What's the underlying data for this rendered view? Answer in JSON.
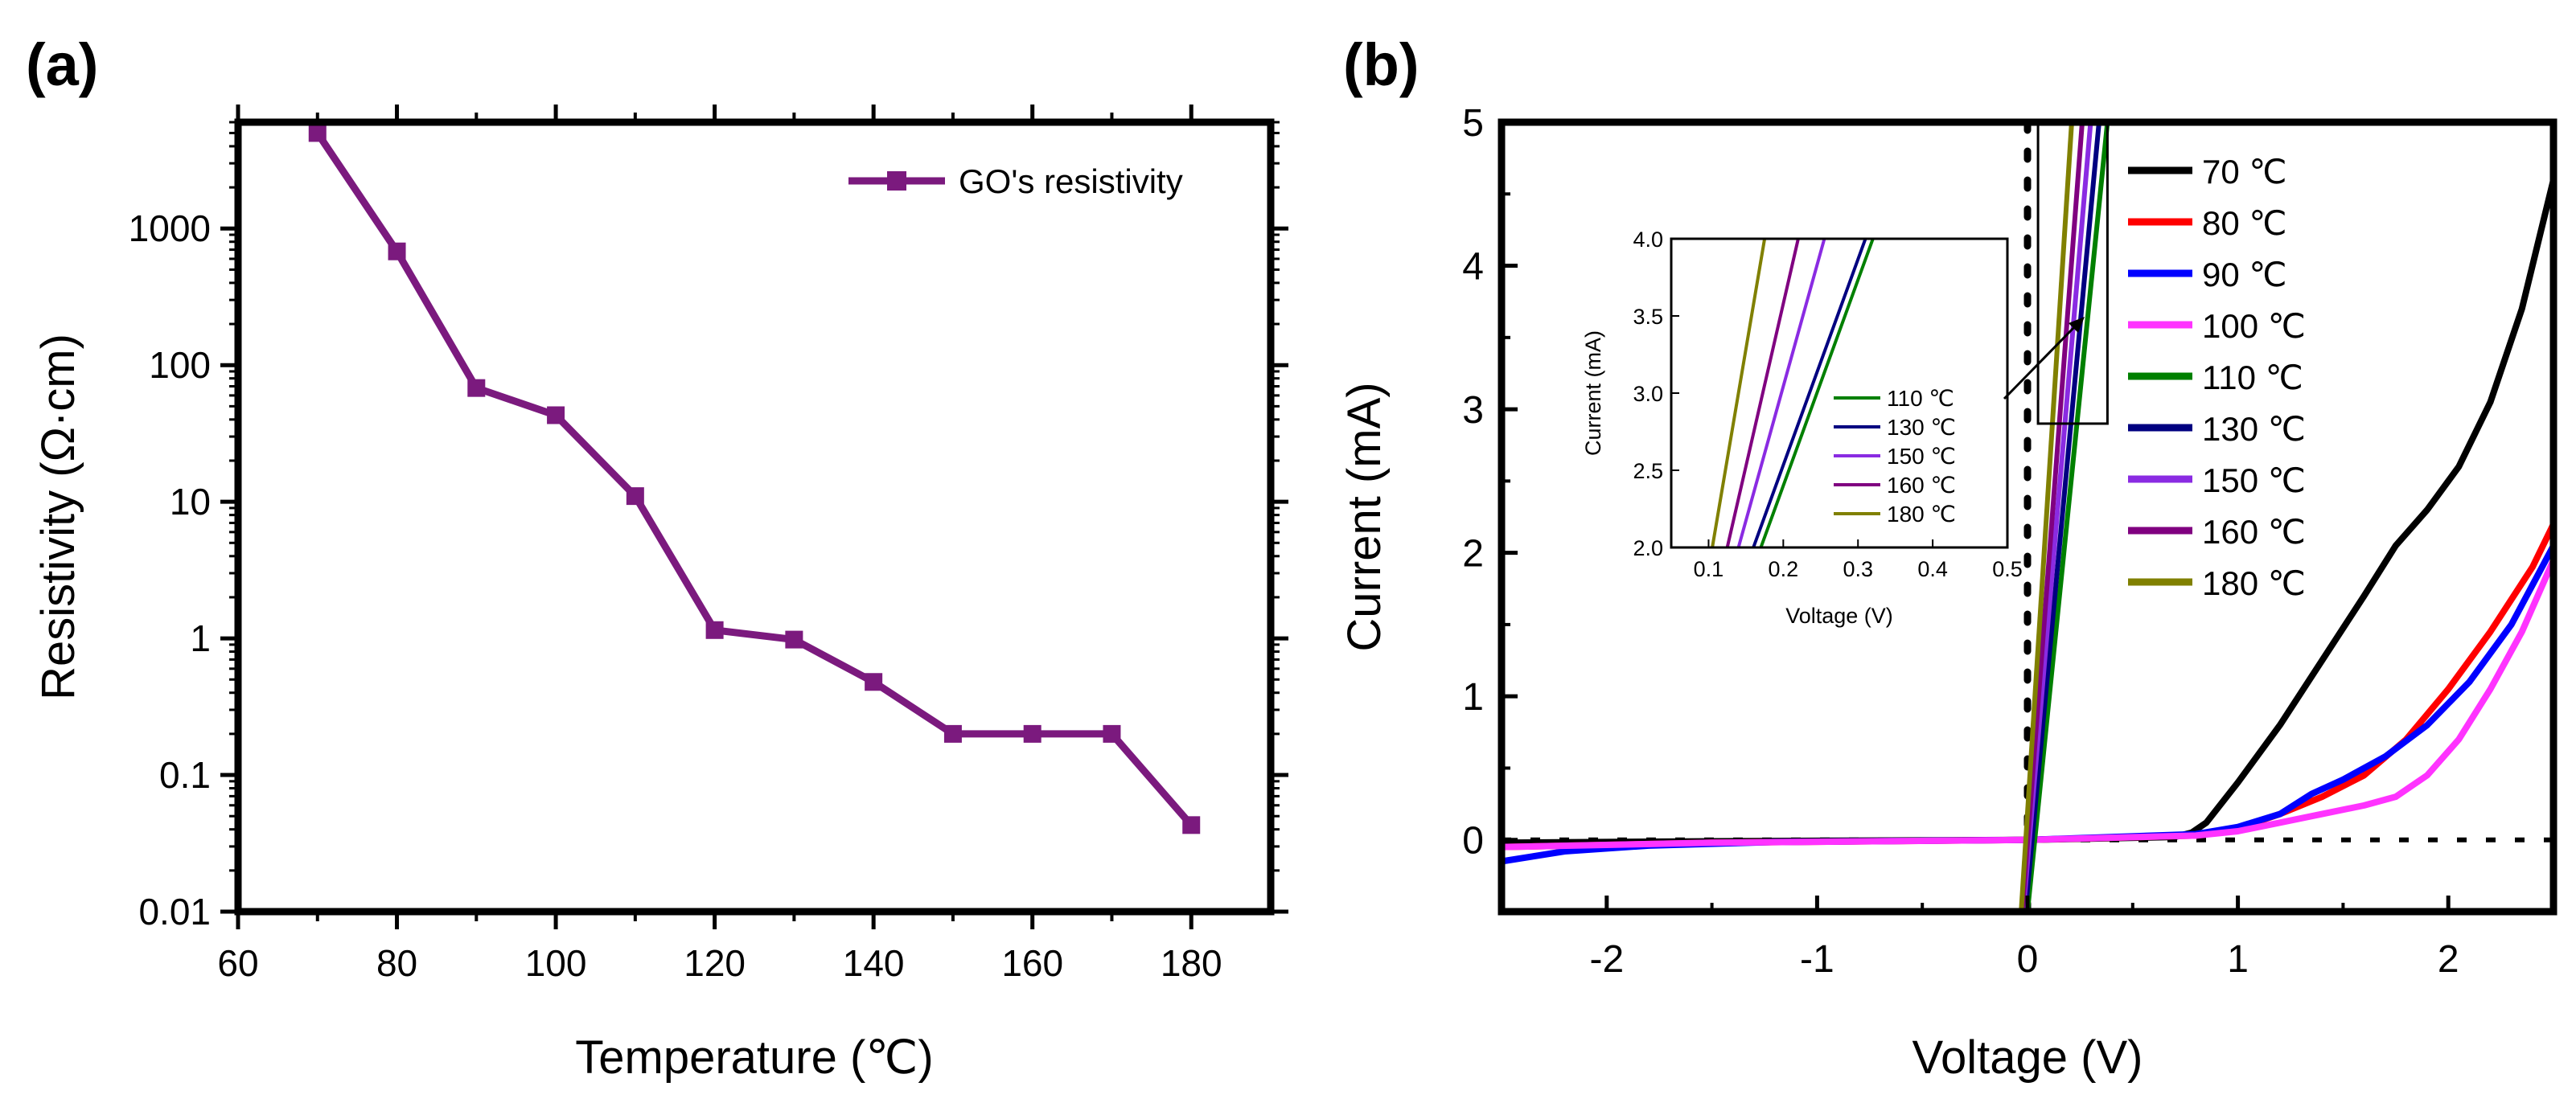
{
  "colors": {
    "axis": "#000000",
    "panel_a_series": "#7b1a7e"
  },
  "chart_data": [
    {
      "panel_label": "(a)",
      "type": "line",
      "y_scale": "log",
      "xlabel": "Temperature (℃)",
      "ylabel": "Resistivity (Ω·cm)",
      "xlim": [
        60,
        190
      ],
      "ylim": [
        0.01,
        6000
      ],
      "x_ticks": [
        "60",
        "80",
        "100",
        "120",
        "140",
        "160",
        "180"
      ],
      "y_ticks": [
        {
          "label": "0.01",
          "value": 0.01
        },
        {
          "label": "0.1",
          "value": 0.1
        },
        {
          "label": "1",
          "value": 1
        },
        {
          "label": "10",
          "value": 10
        },
        {
          "label": "100",
          "value": 100
        },
        {
          "label": "1000",
          "value": 1000
        }
      ],
      "legend_position": "top-right",
      "series": [
        {
          "name": "GO's resistivity",
          "color": "#7b1a7e",
          "marker": "square",
          "x": [
            70,
            80,
            90,
            100,
            110,
            120,
            130,
            140,
            150,
            160,
            170,
            180
          ],
          "y": [
            5000,
            680,
            68,
            43,
            11,
            1.15,
            0.98,
            0.48,
            0.2,
            0.2,
            0.2,
            0.043
          ]
        }
      ]
    },
    {
      "panel_label": "(b)",
      "type": "line",
      "xlabel": "Voltage (V)",
      "ylabel": "Current (mA)",
      "xlim": [
        -2.5,
        2.5
      ],
      "ylim": [
        -0.5,
        5
      ],
      "x_ticks": [
        "-2",
        "-1",
        "0",
        "1",
        "2"
      ],
      "y_ticks": [
        "0",
        "1",
        "2",
        "3",
        "4",
        "5"
      ],
      "legend_position": "top-right",
      "zero_reference": "dotted lines at V = 0 and I = 0",
      "zoom_box_range": {
        "x": [
          0.05,
          0.38
        ],
        "y": [
          2.9,
          5
        ]
      },
      "series": [
        {
          "name": "70 ℃",
          "color": "#000000",
          "x": [
            -2.5,
            -1.5,
            0,
            0.7,
            0.78,
            0.85,
            1.0,
            1.2,
            1.4,
            1.6,
            1.75,
            1.9,
            2.05,
            2.2,
            2.35,
            2.5
          ],
          "y": [
            -0.02,
            -0.01,
            0,
            0.02,
            0.05,
            0.12,
            0.4,
            0.8,
            1.25,
            1.7,
            2.05,
            2.3,
            2.6,
            3.05,
            3.7,
            4.6
          ]
        },
        {
          "name": "80 ℃",
          "color": "#ff0000",
          "x": [
            -2.5,
            -1.5,
            0,
            0.8,
            1.0,
            1.2,
            1.4,
            1.6,
            1.8,
            2.0,
            2.2,
            2.4,
            2.5
          ],
          "y": [
            -0.05,
            -0.02,
            0,
            0.03,
            0.08,
            0.18,
            0.3,
            0.45,
            0.7,
            1.05,
            1.45,
            1.9,
            2.2
          ]
        },
        {
          "name": "90 ℃",
          "color": "#0000ff",
          "x": [
            -2.5,
            -2.2,
            -1.8,
            -1.2,
            0,
            0.8,
            1.0,
            1.2,
            1.35,
            1.5,
            1.7,
            1.9,
            2.1,
            2.3,
            2.5
          ],
          "y": [
            -0.15,
            -0.08,
            -0.04,
            -0.015,
            0,
            0.04,
            0.09,
            0.18,
            0.32,
            0.42,
            0.58,
            0.8,
            1.1,
            1.5,
            2.05
          ]
        },
        {
          "name": "100 ℃",
          "color": "#ff33ff",
          "x": [
            -2.5,
            -1.5,
            0,
            0.8,
            1.0,
            1.2,
            1.4,
            1.6,
            1.75,
            1.9,
            2.05,
            2.2,
            2.35,
            2.5
          ],
          "y": [
            -0.05,
            -0.02,
            0,
            0.03,
            0.06,
            0.12,
            0.18,
            0.24,
            0.3,
            0.45,
            0.7,
            1.05,
            1.45,
            1.95
          ]
        },
        {
          "name": "110 ℃",
          "color": "#008000",
          "x": [
            0.0,
            0.38
          ],
          "y": [
            -0.5,
            5.0
          ]
        },
        {
          "name": "130 ℃",
          "color": "#000080",
          "x": [
            -0.01,
            0.34
          ],
          "y": [
            -0.5,
            5.0
          ]
        },
        {
          "name": "150 ℃",
          "color": "#8a2be2",
          "x": [
            -0.02,
            0.3
          ],
          "y": [
            -0.5,
            5.0
          ]
        },
        {
          "name": "160 ℃",
          "color": "#800080",
          "x": [
            -0.025,
            0.26
          ],
          "y": [
            -0.5,
            5.0
          ]
        },
        {
          "name": "180 ℃",
          "color": "#808000",
          "x": [
            -0.03,
            0.21
          ],
          "y": [
            -0.5,
            5.0
          ]
        }
      ]
    },
    {
      "panel_label": "(b) inset",
      "type": "line",
      "xlabel": "Voltage (V)",
      "ylabel": "Current (mA)",
      "xlim": [
        0.05,
        0.5
      ],
      "ylim": [
        2.0,
        4.0
      ],
      "x_ticks": [
        "0.1",
        "0.2",
        "0.3",
        "0.4",
        "0.5"
      ],
      "y_ticks": [
        "2.0",
        "2.5",
        "3.0",
        "3.5",
        "4.0"
      ],
      "legend_position": "center-right",
      "series": [
        {
          "name": "110 ℃",
          "color": "#008000",
          "x": [
            0.17,
            0.32
          ],
          "y": [
            2.0,
            4.0
          ]
        },
        {
          "name": "130 ℃",
          "color": "#000080",
          "x": [
            0.16,
            0.31
          ],
          "y": [
            2.0,
            4.0
          ]
        },
        {
          "name": "150 ℃",
          "color": "#8a2be2",
          "x": [
            0.14,
            0.255
          ],
          "y": [
            2.0,
            4.0
          ]
        },
        {
          "name": "160 ℃",
          "color": "#800080",
          "x": [
            0.125,
            0.22
          ],
          "y": [
            2.0,
            4.0
          ]
        },
        {
          "name": "180 ℃",
          "color": "#808000",
          "x": [
            0.105,
            0.175
          ],
          "y": [
            2.0,
            4.0
          ]
        }
      ]
    }
  ]
}
